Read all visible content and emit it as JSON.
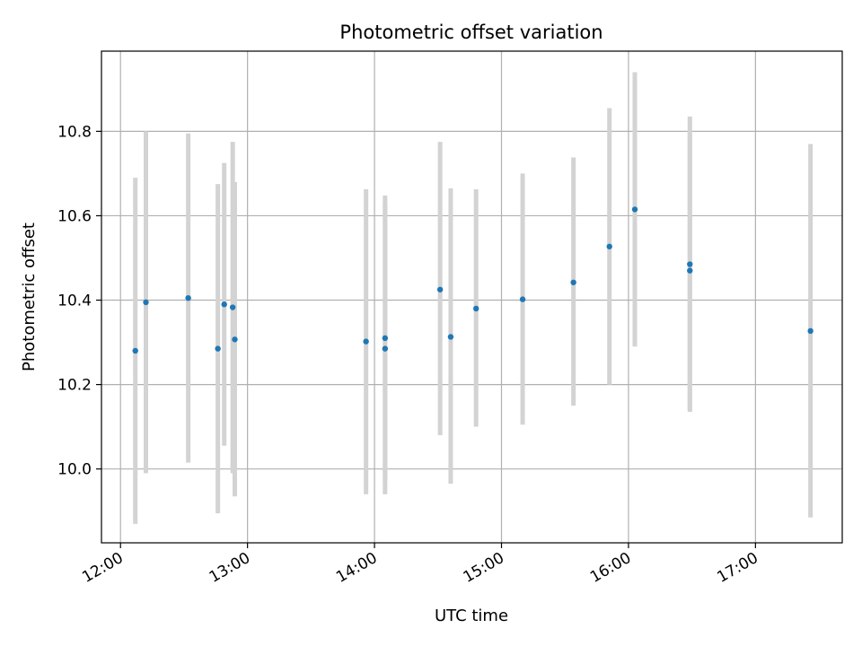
{
  "chart_data": {
    "type": "scatter",
    "title": "Photometric offset variation",
    "xlabel": "UTC time",
    "ylabel": "Photometric offset",
    "x_ticks": [
      "12:00",
      "13:00",
      "14:00",
      "15:00",
      "16:00",
      "17:00"
    ],
    "y_ticks": [
      "10.0",
      "10.2",
      "10.4",
      "10.6",
      "10.8"
    ],
    "xlim": [
      "11:51",
      "17:41"
    ],
    "ylim": [
      9.825,
      10.99
    ],
    "grid": true,
    "colors": {
      "points": "#1f77b4",
      "errorbars": "#d3d3d3",
      "grid": "#b0b0b0"
    },
    "series": [
      {
        "points": [
          {
            "x": "12:07",
            "y": 10.28,
            "ylow": 9.87,
            "yhigh": 10.69
          },
          {
            "x": "12:12",
            "y": 10.395,
            "ylow": 9.99,
            "yhigh": 10.8
          },
          {
            "x": "12:32",
            "y": 10.405,
            "ylow": 10.015,
            "yhigh": 10.795
          },
          {
            "x": "12:46",
            "y": 10.285,
            "ylow": 9.895,
            "yhigh": 10.675
          },
          {
            "x": "12:49",
            "y": 10.39,
            "ylow": 10.055,
            "yhigh": 10.725
          },
          {
            "x": "12:53",
            "y": 10.383,
            "ylow": 9.99,
            "yhigh": 10.775
          },
          {
            "x": "12:54",
            "y": 10.307,
            "ylow": 9.935,
            "yhigh": 10.68
          },
          {
            "x": "13:56",
            "y": 10.302,
            "ylow": 9.94,
            "yhigh": 10.663
          },
          {
            "x": "14:05",
            "y": 10.31,
            "ylow": 9.97,
            "yhigh": 10.648
          },
          {
            "x": "14:05",
            "y": 10.285,
            "ylow": 9.94,
            "yhigh": 10.63
          },
          {
            "x": "14:31",
            "y": 10.425,
            "ylow": 10.08,
            "yhigh": 10.775
          },
          {
            "x": "14:36",
            "y": 10.313,
            "ylow": 9.965,
            "yhigh": 10.665
          },
          {
            "x": "14:48",
            "y": 10.38,
            "ylow": 10.1,
            "yhigh": 10.663
          },
          {
            "x": "15:10",
            "y": 10.402,
            "ylow": 10.105,
            "yhigh": 10.7
          },
          {
            "x": "15:34",
            "y": 10.442,
            "ylow": 10.15,
            "yhigh": 10.738
          },
          {
            "x": "15:51",
            "y": 10.527,
            "ylow": 10.2,
            "yhigh": 10.855
          },
          {
            "x": "16:03",
            "y": 10.615,
            "ylow": 10.29,
            "yhigh": 10.94
          },
          {
            "x": "16:29",
            "y": 10.485,
            "ylow": 10.135,
            "yhigh": 10.835
          },
          {
            "x": "16:29",
            "y": 10.47,
            "ylow": 10.14,
            "yhigh": 10.8
          },
          {
            "x": "17:26",
            "y": 10.327,
            "ylow": 9.885,
            "yhigh": 10.77
          }
        ]
      }
    ]
  }
}
